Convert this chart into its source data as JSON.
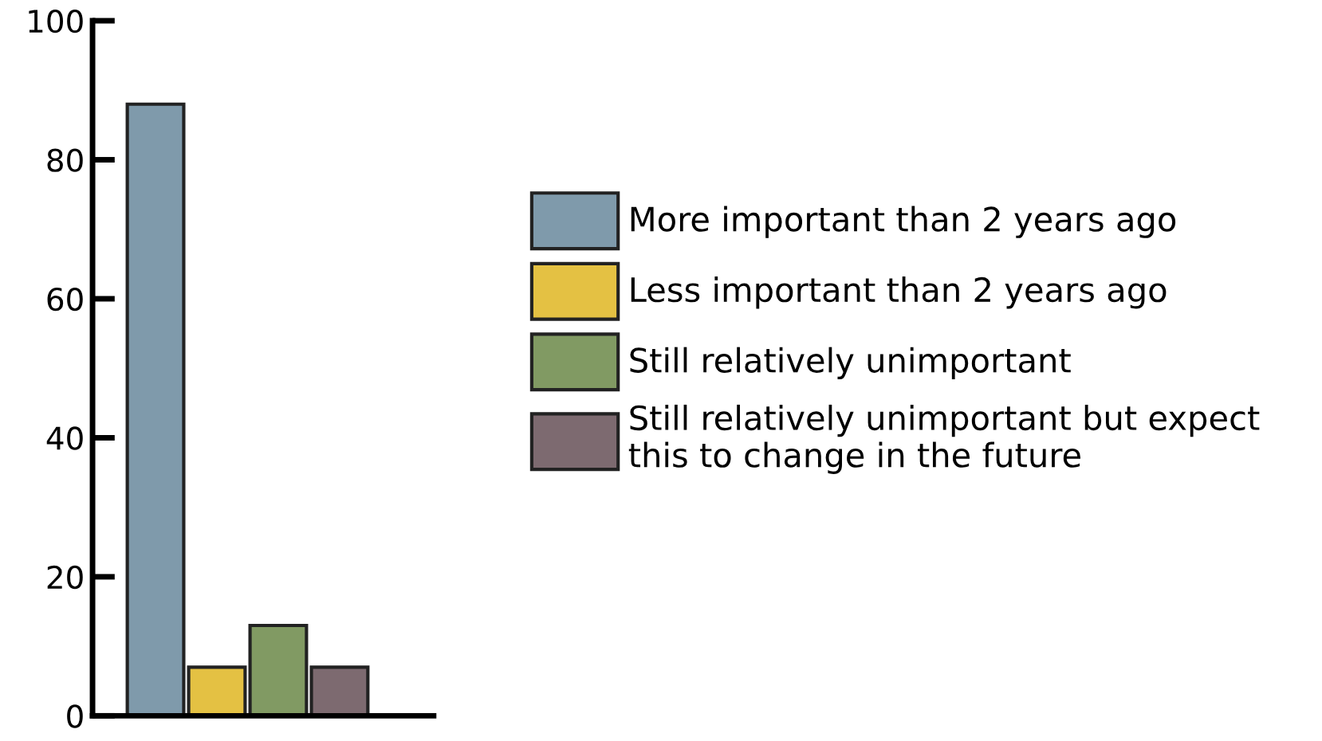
{
  "chart_data": {
    "type": "bar",
    "categories": [
      null
    ],
    "series": [
      {
        "name": "More important than 2 years ago",
        "color": "#7f9aab",
        "values": [
          88
        ]
      },
      {
        "name": "Less important than 2 years ago",
        "color": "#e4c143",
        "values": [
          7
        ]
      },
      {
        "name": "Still relatively unimportant",
        "color": "#819a63",
        "values": [
          13
        ]
      },
      {
        "name": "Still relatively unimportant but expect\nthis to change in the future",
        "color": "#7d6a70",
        "values": [
          7
        ]
      }
    ],
    "ylim": [
      0,
      100
    ],
    "yticks": [
      0,
      20,
      40,
      60,
      80,
      100
    ],
    "grid": false,
    "legend": "right"
  }
}
